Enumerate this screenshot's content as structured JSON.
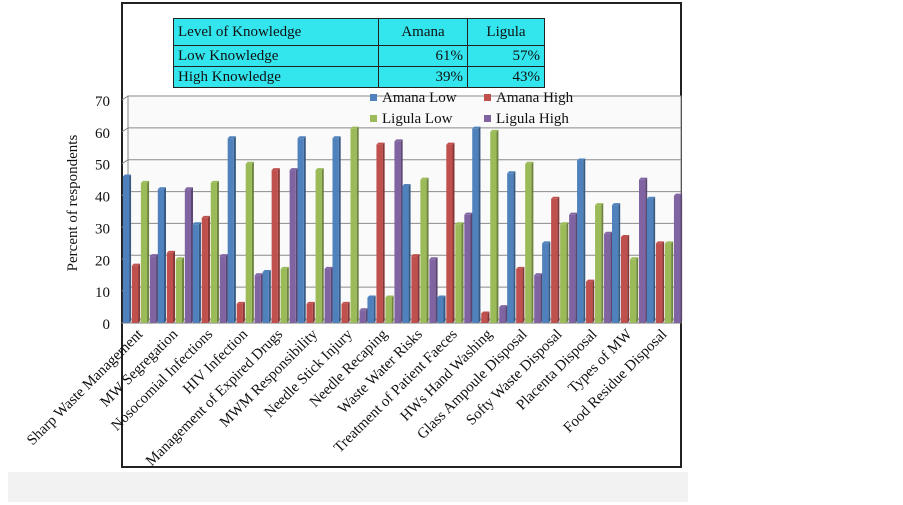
{
  "knowledge_table": {
    "headers": [
      "Level of Knowledge",
      "Amana",
      "Ligula"
    ],
    "rows": [
      [
        "Low Knowledge",
        "61%",
        "57%"
      ],
      [
        "High Knowledge",
        "39%",
        "43%"
      ]
    ]
  },
  "chart_data": {
    "type": "bar",
    "ylabel": "Percent of respondents",
    "xlabel": "",
    "ylim": [
      0,
      70
    ],
    "yticks": [
      0,
      10,
      20,
      30,
      40,
      50,
      60,
      70
    ],
    "grid": true,
    "legend_position": "top-right",
    "categories": [
      "Sharp Waste Management",
      "MW Segregation",
      "Nosocomial Infections",
      "HIV Infection",
      "Management of Expired Drugs",
      "MWM Responsibility",
      "Needle Stick Injury",
      "Needle Recaping",
      "Waste Water Risks",
      "Treatment of Patient Faeces",
      "HWs Hand Washing",
      "Glass Ampoule Disposal",
      "Softy Waste Disposal",
      "Placenta Disposal",
      "Types of MW",
      "Food Residue Disposal"
    ],
    "series": [
      {
        "name": "Amana Low",
        "color": "#4f81bd",
        "values": [
          46,
          42,
          31,
          58,
          16,
          58,
          58,
          8,
          43,
          8,
          61,
          47,
          25,
          51,
          37,
          39
        ]
      },
      {
        "name": "Amana High",
        "color": "#c0504d",
        "values": [
          18,
          22,
          33,
          6,
          48,
          6,
          6,
          56,
          21,
          56,
          3,
          17,
          39,
          13,
          27,
          25
        ]
      },
      {
        "name": "Ligula Low",
        "color": "#9bbb59",
        "values": [
          44,
          20,
          44,
          50,
          17,
          48,
          61,
          8,
          45,
          31,
          60,
          50,
          31,
          37,
          20,
          25
        ]
      },
      {
        "name": "Ligula High",
        "color": "#8064a2",
        "values": [
          21,
          42,
          21,
          15,
          48,
          17,
          4,
          57,
          20,
          34,
          5,
          15,
          34,
          28,
          45,
          40
        ]
      }
    ]
  }
}
